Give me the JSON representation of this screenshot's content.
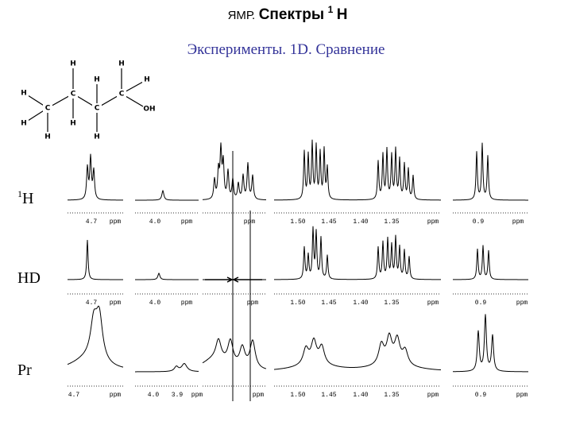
{
  "header": {
    "title_prefix": "ЯМР.",
    "title_main": "Спектры",
    "title_sup": "1",
    "title_end": "H",
    "subtitle": "Эксперименты. 1D. Сравнение"
  },
  "molecule": {
    "atoms": [
      "H",
      "H",
      "H",
      "H",
      "H",
      "C",
      "C",
      "C",
      "C",
      "OH",
      "H",
      "H",
      "H",
      "H"
    ]
  },
  "rows": [
    {
      "label": {
        "sup": "1",
        "text": "H"
      },
      "panels": [
        {
          "labels": [
            "4.7",
            "ppm"
          ]
        },
        {
          "labels": [
            "4.0",
            "ppm"
          ]
        },
        {
          "labels": [
            "ppm"
          ]
        },
        {
          "labels": [
            "1.50",
            "1.45",
            "1.40",
            "1.35",
            "ppm"
          ]
        },
        {
          "labels": [
            "0.9",
            "ppm"
          ]
        }
      ]
    },
    {
      "label": {
        "text": "HD"
      },
      "panels": [
        {
          "labels": [
            "4.7",
            "ppm"
          ]
        },
        {
          "labels": [
            "4.0",
            "ppm"
          ]
        },
        {
          "labels": [
            "ppm"
          ]
        },
        {
          "labels": [
            "1.50",
            "1.45",
            "1.40",
            "1.35",
            "ppm"
          ]
        },
        {
          "labels": [
            "0.9",
            "ppm"
          ]
        }
      ]
    },
    {
      "label": {
        "text": "Pr"
      },
      "panels": [
        {
          "labels": [
            "4.7",
            "ppm"
          ]
        },
        {
          "labels": [
            "4.0",
            "3.9",
            "ppm"
          ]
        },
        {
          "labels": [
            "ppm"
          ]
        },
        {
          "labels": [
            "1.50",
            "1.45",
            "1.40",
            "1.35",
            "ppm"
          ]
        },
        {
          "labels": [
            "0.9",
            "ppm"
          ]
        }
      ]
    }
  ]
}
